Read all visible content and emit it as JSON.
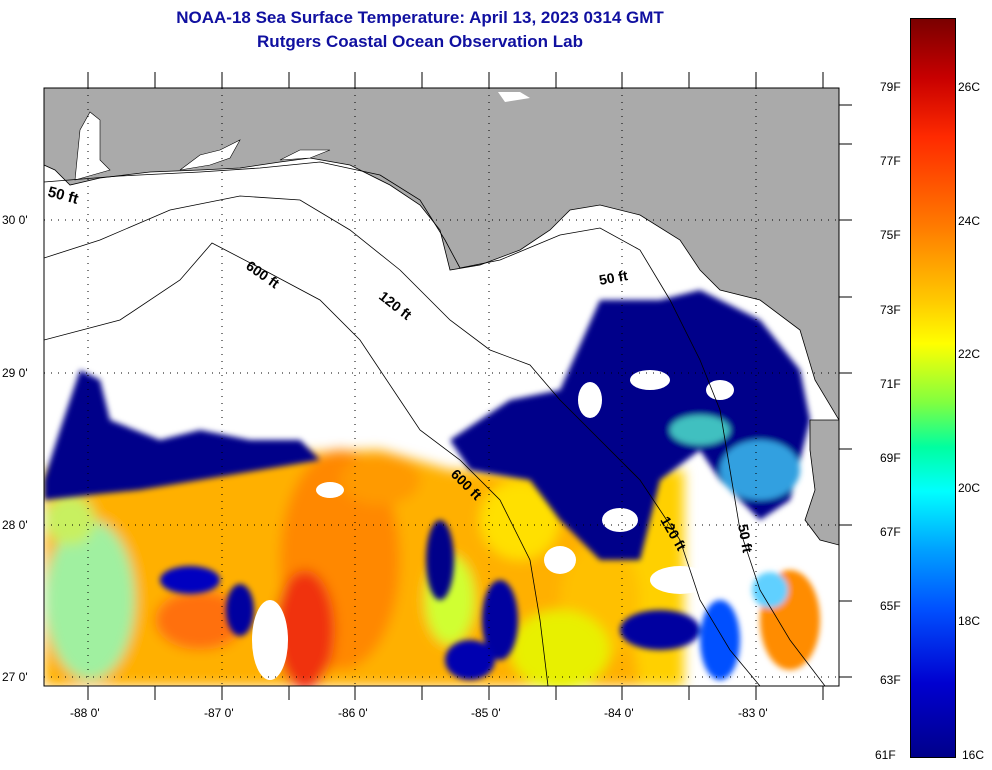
{
  "title": {
    "line1": "NOAA-18 Sea Surface Temperature:  April 13, 2023 0314 GMT",
    "line2": "Rutgers Coastal Ocean Observation Lab"
  },
  "axes": {
    "lon_ticks": [
      "-88 0'",
      "-87 0'",
      "-86 0'",
      "-85 0'",
      "-84 0'",
      "-83 0'"
    ],
    "lat_ticks": [
      "30 0'",
      "29 0'",
      "28 0'",
      "27 0'"
    ]
  },
  "contours": {
    "label_50": "50 ft",
    "label_120": "120 ft",
    "label_600": "600 ft"
  },
  "colorbar": {
    "fahrenheit": [
      "79F",
      "77F",
      "75F",
      "73F",
      "71F",
      "69F",
      "67F",
      "65F",
      "63F",
      "61F"
    ],
    "celsius": [
      "26C",
      "24C",
      "22C",
      "20C",
      "18C",
      "16C"
    ]
  },
  "colors": {
    "land": "#aaaaaa",
    "cloud": "#ffffff",
    "title": "#1010a0"
  }
}
